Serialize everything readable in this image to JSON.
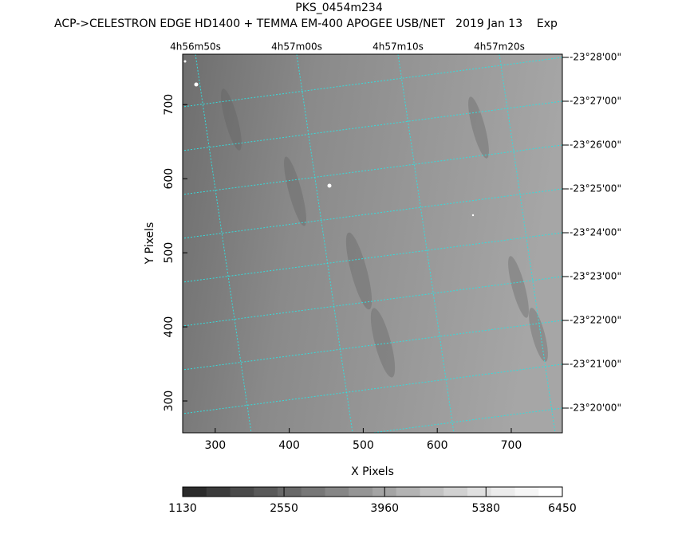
{
  "chart_data": {
    "type": "image",
    "title": "PKS_0454m234",
    "subtitle": "ACP->CELESTRON EDGE HD1400 + TEMMA EM-400 APOGEE USB/NET   2019 Jan 13    Exp",
    "x_label": "X Pixels",
    "y_label": "Y Pixels",
    "xlim": [
      256,
      769
    ],
    "xticks": [
      300,
      400,
      500,
      600,
      700
    ],
    "ylim": [
      257,
      768
    ],
    "yticks": [
      300,
      400,
      500,
      600,
      700
    ],
    "ra_labels": [
      "4h56m50s",
      "4h57m00s",
      "4h57m10s",
      "4h57m20s"
    ],
    "dec_labels": [
      "-23°28'00\"",
      "-23°27'00\"",
      "-23°26'00\"",
      "-23°25'00\"",
      "-23°24'00\"",
      "-23°23'00\"",
      "-23°22'00\"",
      "-23°21'00\"",
      "-23°20'00\""
    ],
    "grid_color": "#33dddd",
    "colorbar": {
      "lim": [
        1130,
        6450
      ],
      "ticks": [
        1130,
        2550,
        3960,
        5380,
        6450
      ],
      "colors": [
        "#2b2b2b",
        "#3b3b3b",
        "#4a4a4a",
        "#595959",
        "#686868",
        "#777777",
        "#868686",
        "#959595",
        "#a4a4a4",
        "#b3b3b3",
        "#c2c2c2",
        "#d1d1d1",
        "#e0e0e0",
        "#ececec",
        "#f6f6f6",
        "#ffffff"
      ]
    }
  }
}
